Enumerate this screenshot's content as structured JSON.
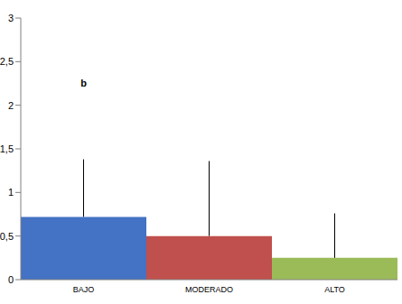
{
  "chart_data": {
    "type": "bar",
    "categories": [
      "BAJO",
      "MODERADO",
      "ALTO"
    ],
    "values": [
      0.72,
      0.5,
      0.25
    ],
    "errors": [
      0.66,
      0.86,
      0.51
    ],
    "colors": [
      "#4472c4",
      "#c0504d",
      "#9bbb59"
    ],
    "ylim": [
      0,
      3
    ],
    "yticks": [
      0,
      {
        "value": 0.5,
        "label": "0,5"
      },
      1,
      {
        "value": 1.5,
        "label": "1,5"
      },
      2,
      {
        "value": 2.5,
        "label": "2,5"
      },
      3
    ],
    "grid": false,
    "annotations": [
      {
        "text": "b",
        "x": "BAJO",
        "y": 2.25
      }
    ]
  }
}
